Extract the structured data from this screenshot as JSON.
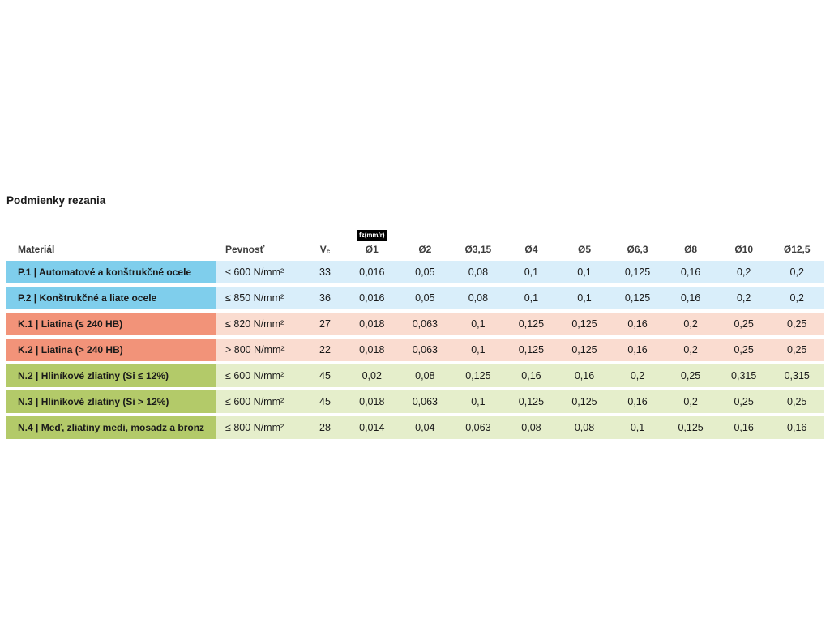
{
  "page": {
    "title": "Podmienky rezania"
  },
  "table": {
    "headers": {
      "material": "Materiál",
      "strength": "Pevnosť",
      "vc_main": "V",
      "vc_sub": "c",
      "fz_badge": "fz(mm/r)",
      "diameters": [
        "Ø1",
        "Ø2",
        "Ø3,15",
        "Ø4",
        "Ø5",
        "Ø6,3",
        "Ø8",
        "Ø10",
        "Ø12,5"
      ]
    },
    "colors": {
      "blue_label": "#7fceec",
      "blue_row": "#d9eefa",
      "salmon_label": "#f29379",
      "salmon_row": "#fadcd0",
      "green_label": "#b3ca69",
      "green_row": "#e5eecb",
      "badge_bg": "#000000",
      "badge_text": "#ffffff"
    },
    "rows": [
      {
        "group": "blue",
        "material": "P.1 | Automatové a konštrukčné ocele",
        "strength": "≤ 600 N/mm²",
        "vc": "33",
        "values": [
          "0,016",
          "0,05",
          "0,08",
          "0,1",
          "0,1",
          "0,125",
          "0,16",
          "0,2",
          "0,2"
        ]
      },
      {
        "group": "blue",
        "material": "P.2 | Konštrukčné a liate ocele",
        "strength": "≤ 850 N/mm²",
        "vc": "36",
        "values": [
          "0,016",
          "0,05",
          "0,08",
          "0,1",
          "0,1",
          "0,125",
          "0,16",
          "0,2",
          "0,2"
        ]
      },
      {
        "group": "salmon",
        "material": "K.1 | Liatina (≤ 240 HB)",
        "strength": "≤ 820 N/mm²",
        "vc": "27",
        "values": [
          "0,018",
          "0,063",
          "0,1",
          "0,125",
          "0,125",
          "0,16",
          "0,2",
          "0,25",
          "0,25"
        ]
      },
      {
        "group": "salmon",
        "material": "K.2 | Liatina (> 240 HB)",
        "strength": "> 800 N/mm²",
        "vc": "22",
        "values": [
          "0,018",
          "0,063",
          "0,1",
          "0,125",
          "0,125",
          "0,16",
          "0,2",
          "0,25",
          "0,25"
        ]
      },
      {
        "group": "green",
        "material": "N.2 | Hliníkové zliatiny (Si ≤ 12%)",
        "strength": "≤ 600 N/mm²",
        "vc": "45",
        "values": [
          "0,02",
          "0,08",
          "0,125",
          "0,16",
          "0,16",
          "0,2",
          "0,25",
          "0,315",
          "0,315"
        ]
      },
      {
        "group": "green",
        "material": "N.3 | Hliníkové zliatiny (Si > 12%)",
        "strength": "≤ 600 N/mm²",
        "vc": "45",
        "values": [
          "0,018",
          "0,063",
          "0,1",
          "0,125",
          "0,125",
          "0,16",
          "0,2",
          "0,25",
          "0,25"
        ]
      },
      {
        "group": "green",
        "material": "N.4 | Meď, zliatiny medi, mosadz a bronz",
        "strength": "≤ 800 N/mm²",
        "vc": "28",
        "values": [
          "0,014",
          "0,04",
          "0,063",
          "0,08",
          "0,08",
          "0,1",
          "0,125",
          "0,16",
          "0,16"
        ]
      }
    ]
  }
}
